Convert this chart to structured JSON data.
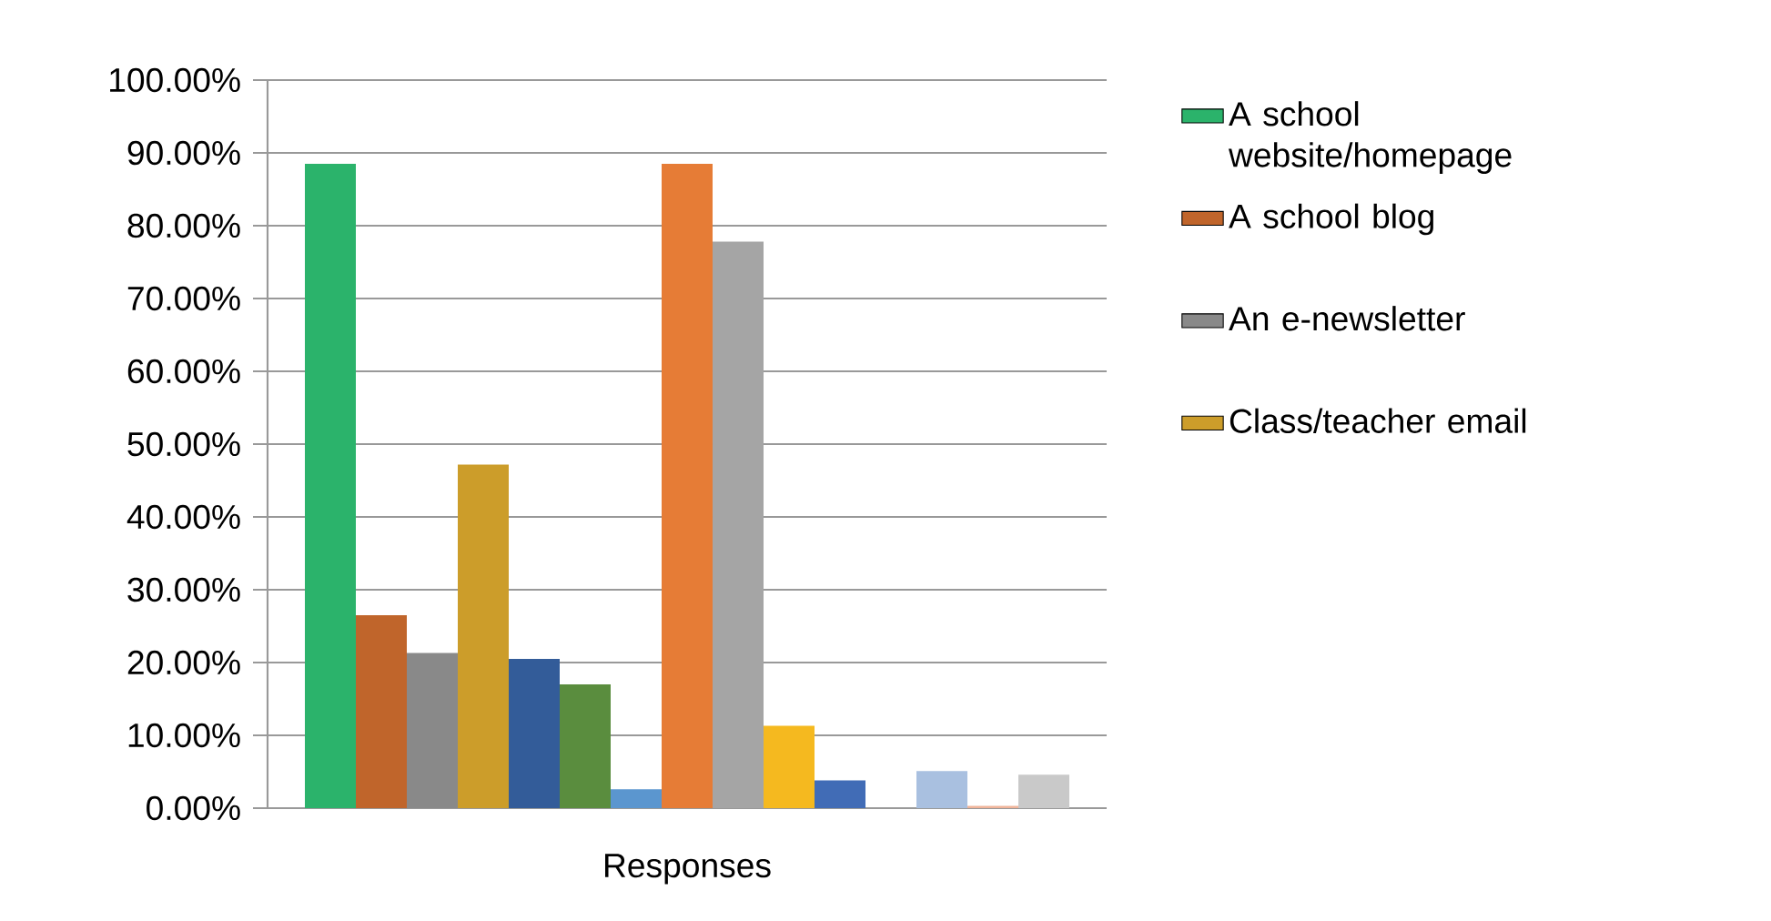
{
  "chart_data": {
    "type": "bar",
    "categories": [
      "Responses"
    ],
    "series": [
      {
        "name": "A school website/homepage",
        "color": "#2bb36b",
        "values": [
          88.5
        ]
      },
      {
        "name": "A school blog",
        "color": "#c0652b",
        "values": [
          26.5
        ]
      },
      {
        "name": "An e-newsletter",
        "color": "#898989",
        "values": [
          21.3
        ]
      },
      {
        "name": "Class/teacher email",
        "color": "#cc9d2a",
        "values": [
          47.2
        ]
      },
      {
        "color": "#335c99",
        "values": [
          20.5
        ]
      },
      {
        "color": "#5a8d3e",
        "values": [
          17.0
        ]
      },
      {
        "color": "#5b96cf",
        "values": [
          2.6
        ]
      },
      {
        "color": "#e67c36",
        "values": [
          88.5
        ]
      },
      {
        "color": "#a5a5a5",
        "values": [
          77.8
        ]
      },
      {
        "color": "#f5b91f",
        "values": [
          11.3
        ]
      },
      {
        "color": "#416cb6",
        "values": [
          3.8
        ]
      },
      {
        "color": "#264478",
        "values": [
          0
        ]
      },
      {
        "color": "#a9c0e0",
        "values": [
          5.1
        ]
      },
      {
        "color": "#f0b49a",
        "values": [
          0.3
        ]
      },
      {
        "color": "#c9c9c9",
        "values": [
          4.6
        ]
      }
    ],
    "ylim": [
      0,
      100
    ],
    "yticks": [
      {
        "value": 0,
        "label": "0.00%"
      },
      {
        "value": 10,
        "label": "10.00%"
      },
      {
        "value": 20,
        "label": "20.00%"
      },
      {
        "value": 30,
        "label": "30.00%"
      },
      {
        "value": 40,
        "label": "40.00%"
      },
      {
        "value": 50,
        "label": "50.00%"
      },
      {
        "value": 60,
        "label": "60.00%"
      },
      {
        "value": 70,
        "label": "70.00%"
      },
      {
        "value": 80,
        "label": "80.00%"
      },
      {
        "value": 90,
        "label": "90.00%"
      },
      {
        "value": 100,
        "label": "100.00%"
      }
    ],
    "grid": "y",
    "legend": "right"
  }
}
